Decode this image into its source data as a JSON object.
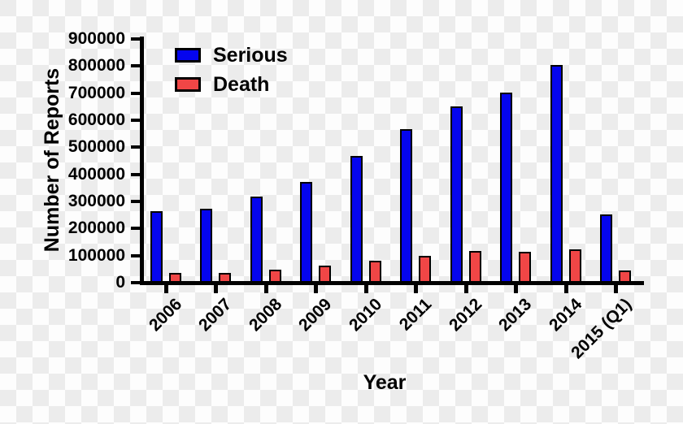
{
  "figure": {
    "background": "transparent-checkerboard",
    "checker_light_color": "#fdfdfd",
    "checker_dark_color": "#ececec",
    "axis_color": "#000000",
    "text_color": "#000000"
  },
  "chart_data": {
    "type": "bar",
    "title": "",
    "xlabel": "Year",
    "ylabel": "Number of Reports",
    "ylim": [
      0,
      900000
    ],
    "ytick_step": 100000,
    "ytick_labels": [
      "0",
      "100000",
      "200000",
      "300000",
      "400000",
      "500000",
      "600000",
      "700000",
      "800000",
      "900000"
    ],
    "grid": false,
    "legend_position": "upper-left-inside",
    "categories": [
      "2006",
      "2007",
      "2008",
      "2009",
      "2010",
      "2011",
      "2012",
      "2013",
      "2014",
      "2015 (Q1)"
    ],
    "series": [
      {
        "name": "Serious",
        "color": "#0505ee",
        "values": [
          265000,
          272000,
          318000,
          371000,
          469000,
          568000,
          651000,
          701000,
          805000,
          251000
        ]
      },
      {
        "name": "Death",
        "color": "#f04646",
        "values": [
          36000,
          37000,
          48000,
          62000,
          80000,
          98000,
          116000,
          115000,
          122000,
          44000
        ]
      }
    ]
  }
}
